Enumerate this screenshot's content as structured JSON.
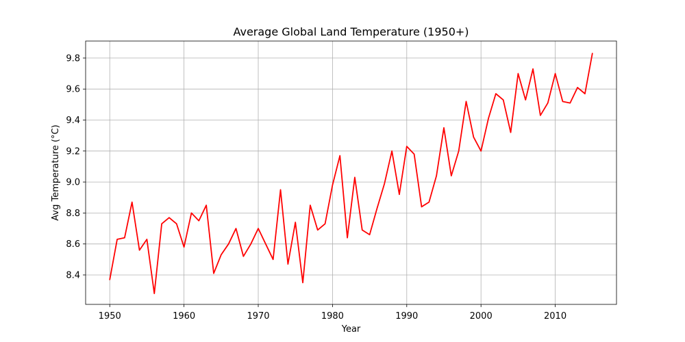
{
  "chart_data": {
    "type": "line",
    "title": "Average Global Land Temperature (1950+)",
    "xlabel": "Year",
    "ylabel": "Avg Temperature (°C)",
    "grid": true,
    "legend": "none",
    "xlim": [
      1946.75,
      2018.25
    ],
    "ylim": [
      8.21,
      9.91
    ],
    "x_ticks": [
      1950,
      1960,
      1970,
      1980,
      1990,
      2000,
      2010
    ],
    "y_ticks": [
      8.4,
      8.6,
      8.8,
      9.0,
      9.2,
      9.4,
      9.6,
      9.8
    ],
    "y_tick_labels": [
      "8.4",
      "8.6",
      "8.8",
      "9.0",
      "9.2",
      "9.4",
      "9.6",
      "9.8"
    ],
    "series": [
      {
        "color": "#ff0000",
        "x": [
          1950,
          1951,
          1952,
          1953,
          1954,
          1955,
          1956,
          1957,
          1958,
          1959,
          1960,
          1961,
          1962,
          1963,
          1964,
          1965,
          1966,
          1967,
          1968,
          1969,
          1970,
          1971,
          1972,
          1973,
          1974,
          1975,
          1976,
          1977,
          1978,
          1979,
          1980,
          1981,
          1982,
          1983,
          1984,
          1985,
          1986,
          1987,
          1988,
          1989,
          1990,
          1991,
          1992,
          1993,
          1994,
          1995,
          1996,
          1997,
          1998,
          1999,
          2000,
          2001,
          2002,
          2003,
          2004,
          2005,
          2006,
          2007,
          2008,
          2009,
          2010,
          2011,
          2012,
          2013,
          2014,
          2015
        ],
        "values": [
          8.37,
          8.63,
          8.64,
          8.87,
          8.56,
          8.63,
          8.28,
          8.73,
          8.77,
          8.73,
          8.58,
          8.8,
          8.75,
          8.85,
          8.41,
          8.53,
          8.6,
          8.7,
          8.52,
          8.6,
          8.7,
          8.6,
          8.5,
          8.95,
          8.47,
          8.74,
          8.35,
          8.85,
          8.69,
          8.73,
          8.98,
          9.17,
          8.64,
          9.03,
          8.69,
          8.66,
          8.83,
          8.99,
          9.2,
          8.92,
          9.23,
          9.18,
          8.84,
          8.87,
          9.04,
          9.35,
          9.04,
          9.2,
          9.52,
          9.29,
          9.2,
          9.41,
          9.57,
          9.53,
          9.32,
          9.7,
          9.53,
          9.73,
          9.43,
          9.51,
          9.7,
          9.52,
          9.51,
          9.61,
          9.57,
          9.83
        ]
      }
    ]
  }
}
